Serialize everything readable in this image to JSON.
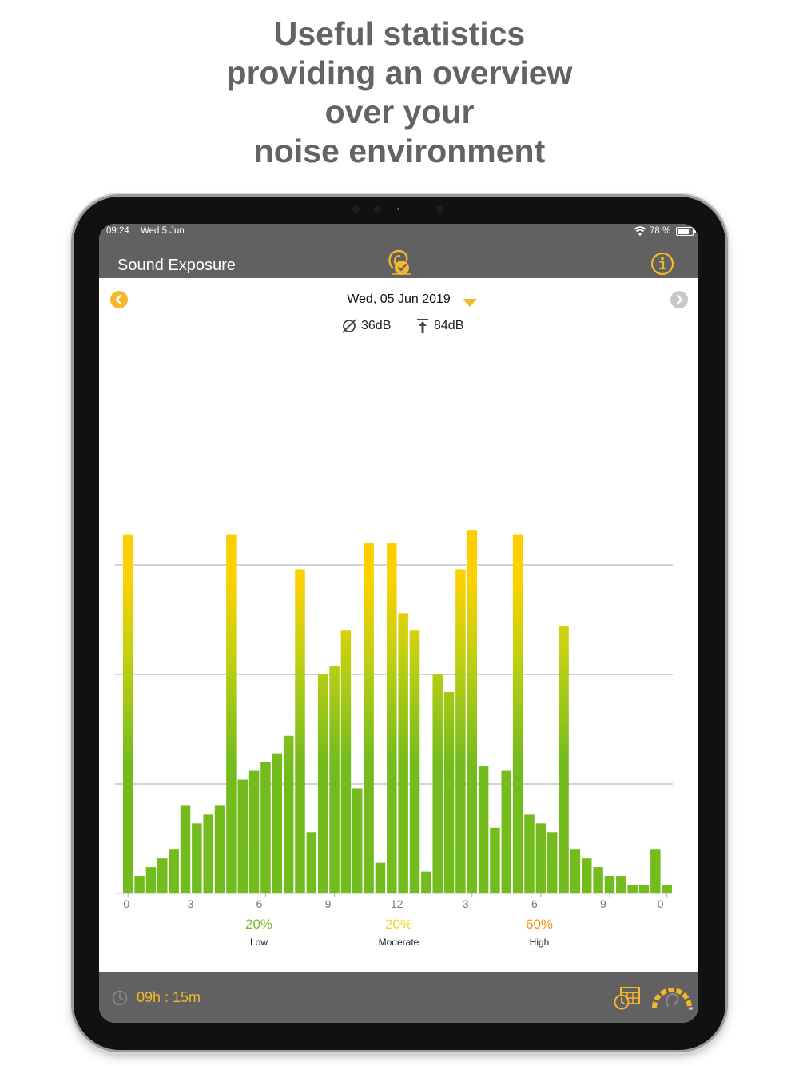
{
  "headline": {
    "lines": [
      "Useful statistics",
      "providing an overview",
      "over your",
      "noise environment"
    ]
  },
  "status_bar": {
    "time": "09:24",
    "date": "Wed 5 Jun",
    "battery": "78 %"
  },
  "nav": {
    "title": "Sound Exposure",
    "logo_icon": "ear-clock-icon",
    "info_icon": "info-icon"
  },
  "date_nav": {
    "date": "Wed, 05 Jun 2019",
    "prev_icon": "chevron-left-icon",
    "next_icon": "chevron-right-icon",
    "dropdown_icon": "caret-down-icon"
  },
  "stats": {
    "average": "36dB",
    "maximum": "84dB"
  },
  "colors": {
    "accent": "#f4b62b",
    "low": "#7ab827",
    "moderate": "#f2d623",
    "high": "#f0900a",
    "bar_green": "#73bc1e",
    "bar_yellow": "#fdd100",
    "bar_orange": "#f08c00",
    "header_gray": "#616161"
  },
  "chart_data": {
    "type": "bar",
    "title": "",
    "xlabel": "",
    "ylabel": "",
    "ylim": [
      0,
      100
    ],
    "gridlines": [
      25,
      50,
      75
    ],
    "tick_labels": [
      {
        "index": 0,
        "label": "0"
      },
      {
        "index": 6,
        "label": "3"
      },
      {
        "index": 12,
        "label": "6"
      },
      {
        "index": 18,
        "label": "9"
      },
      {
        "index": 24,
        "label": "12"
      },
      {
        "index": 30,
        "label": "3"
      },
      {
        "index": 36,
        "label": "6"
      },
      {
        "index": 42,
        "label": "9"
      },
      {
        "index": 47,
        "label": "0"
      }
    ],
    "values": [
      82,
      4,
      6,
      8,
      10,
      20,
      16,
      18,
      20,
      82,
      26,
      28,
      30,
      32,
      36,
      74,
      14,
      50,
      52,
      60,
      24,
      80,
      7,
      80,
      64,
      60,
      5,
      50,
      46,
      74,
      83,
      29,
      15,
      28,
      82,
      18,
      16,
      14,
      61,
      10,
      8,
      6,
      4,
      4,
      2,
      2,
      10,
      2
    ]
  },
  "legend": [
    {
      "percent": "20%",
      "label": "Low",
      "color": "#7ab827"
    },
    {
      "percent": "20%",
      "label": "Moderate",
      "color": "#f2d623"
    },
    {
      "percent": "60%",
      "label": "High",
      "color": "#f0900a"
    }
  ],
  "bottom_bar": {
    "duration": "09h : 15m",
    "clock_icon": "clock-icon",
    "calendar_icon": "calendar-clock-icon",
    "gauge_icon": "hearing-gauge-icon"
  }
}
